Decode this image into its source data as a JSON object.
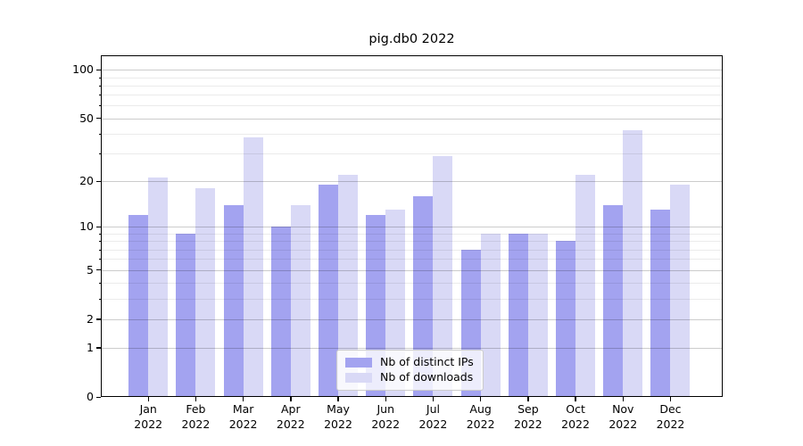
{
  "figure": {
    "background": "#ffffff"
  },
  "chart_data": {
    "type": "bar",
    "title": "pig.db0 2022",
    "categories": [
      "Jan",
      "Feb",
      "Mar",
      "Apr",
      "May",
      "Jun",
      "Jul",
      "Aug",
      "Sep",
      "Oct",
      "Nov",
      "Dec"
    ],
    "year_label": "2022",
    "series": [
      {
        "key": "distinct-ips",
        "name": "Nb of distinct IPs",
        "color": "#a3a3f0",
        "values": [
          12,
          9,
          14,
          10,
          19,
          12,
          16,
          7,
          9,
          8,
          14,
          13
        ]
      },
      {
        "key": "downloads",
        "name": "Nb of downloads",
        "color": "#d9d9f6",
        "values": [
          21,
          18,
          38,
          14,
          22,
          13,
          29,
          9,
          9,
          22,
          42,
          19
        ]
      }
    ],
    "xlabel": "",
    "ylabel": "",
    "y_scale": "log10(1+x)",
    "y_ticks": [
      0,
      1,
      2,
      5,
      10,
      20,
      50,
      100
    ],
    "y_minor_ticks": [
      3,
      4,
      6,
      7,
      8,
      9,
      30,
      40,
      60,
      70,
      80,
      90
    ],
    "ylim": [
      0,
      123
    ],
    "grid": "both",
    "legend_position": "lower center"
  },
  "colors": {
    "major_grid": "rgba(0,0,0,0.20)",
    "minor_grid": "rgba(0,0,0,0.08)",
    "axis": "#000000"
  }
}
